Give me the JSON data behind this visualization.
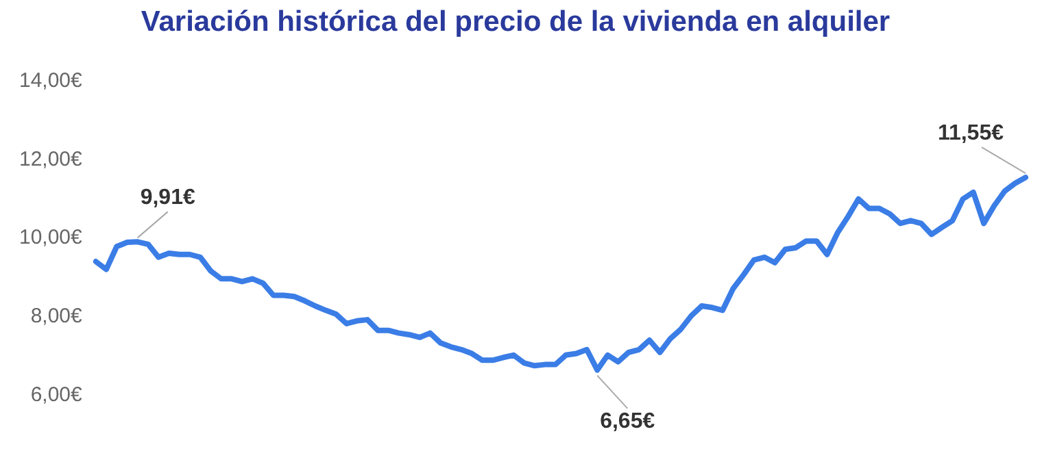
{
  "chart_data": {
    "type": "line",
    "title": "Variación histórica del precio de la vivienda en alquiler",
    "categories": [
      null,
      null,
      null,
      null,
      null,
      null,
      null,
      null,
      null,
      null,
      null,
      null,
      null,
      null,
      null,
      null,
      null,
      null,
      null,
      null,
      null,
      null,
      null,
      null,
      null,
      null,
      null,
      null,
      null,
      null,
      null,
      null,
      null,
      null,
      null,
      null,
      null,
      null,
      null,
      null,
      null,
      null,
      null,
      null,
      null,
      null,
      null,
      null,
      null,
      null,
      null,
      null,
      null,
      null,
      null,
      null,
      null,
      null,
      null,
      null,
      null,
      null,
      null,
      null,
      null,
      null,
      null,
      null,
      null,
      null,
      null,
      null,
      null,
      null,
      null,
      null,
      null,
      null,
      null,
      null,
      null,
      null,
      null,
      null,
      null,
      null,
      null,
      null,
      null,
      null
    ],
    "series": [
      {
        "color": "#3b7de6",
        "values": [
          9.41,
          9.21,
          9.79,
          9.9,
          9.91,
          9.85,
          9.52,
          9.62,
          9.59,
          9.59,
          9.52,
          9.17,
          8.97,
          8.97,
          8.9,
          8.97,
          8.86,
          8.55,
          8.55,
          8.52,
          8.41,
          8.28,
          8.17,
          8.07,
          7.83,
          7.9,
          7.93,
          7.66,
          7.66,
          7.59,
          7.55,
          7.48,
          7.59,
          7.34,
          7.24,
          7.17,
          7.07,
          6.9,
          6.9,
          6.97,
          7.03,
          6.83,
          6.76,
          6.79,
          6.79,
          7.03,
          7.07,
          7.17,
          6.65,
          7.03,
          6.86,
          7.1,
          7.17,
          7.41,
          7.1,
          7.45,
          7.69,
          8.03,
          8.28,
          8.24,
          8.17,
          8.72,
          9.07,
          9.45,
          9.52,
          9.38,
          9.72,
          9.76,
          9.93,
          9.93,
          9.59,
          10.14,
          10.55,
          11.0,
          10.76,
          10.76,
          10.62,
          10.38,
          10.45,
          10.38,
          10.1,
          10.28,
          10.45,
          11.0,
          11.17,
          10.38,
          10.83,
          11.2,
          11.4,
          11.55
        ],
        "value_labels": [
          null,
          null,
          null,
          null,
          "9,91€",
          null,
          null,
          null,
          null,
          null,
          null,
          null,
          null,
          null,
          null,
          null,
          null,
          null,
          null,
          null,
          null,
          null,
          null,
          null,
          null,
          null,
          null,
          null,
          null,
          null,
          null,
          null,
          null,
          null,
          null,
          null,
          null,
          null,
          null,
          null,
          null,
          null,
          null,
          null,
          null,
          null,
          null,
          null,
          "6,65€",
          null,
          null,
          null,
          null,
          null,
          null,
          null,
          null,
          null,
          null,
          null,
          null,
          null,
          null,
          null,
          null,
          null,
          null,
          null,
          null,
          null,
          null,
          null,
          null,
          null,
          null,
          null,
          null,
          null,
          null,
          null,
          null,
          null,
          null,
          null,
          null,
          null,
          null,
          null,
          null,
          "11,55€"
        ]
      }
    ],
    "ylim": [
      6,
      14
    ],
    "yticks": [
      {
        "value": 6,
        "label": "6,00€"
      },
      {
        "value": 8,
        "label": "8,00€"
      },
      {
        "value": 10,
        "label": "10,00€"
      },
      {
        "value": 12,
        "label": "12,00€"
      },
      {
        "value": 14,
        "label": "14,00€"
      }
    ],
    "grid": false,
    "legend": false,
    "marker": "none",
    "line_style": "solid"
  }
}
